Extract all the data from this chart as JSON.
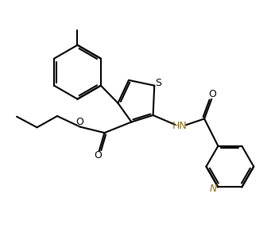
{
  "bg_color": "#ffffff",
  "line_color": "#000000",
  "n_color": "#8B6914",
  "line_width": 1.5,
  "figsize": [
    3.41,
    3.07
  ],
  "dpi": 100,
  "xlim": [
    0,
    10
  ],
  "ylim": [
    0,
    9
  ]
}
